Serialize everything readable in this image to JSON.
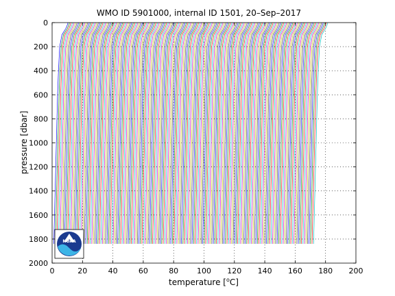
{
  "chart_data": {
    "type": "line",
    "title": "WMO ID 5901000, internal ID 1501, 20–Sep–2017",
    "xlabel_pre": "temperature [",
    "xlabel_sup": "o",
    "xlabel_post": "C]",
    "ylabel": "pressure [dbar]",
    "xlim": [
      0,
      200
    ],
    "ylim": [
      0,
      2000
    ],
    "y_reversed": true,
    "grid": "dotted",
    "x_ticks": [
      0,
      20,
      40,
      60,
      80,
      100,
      120,
      140,
      160,
      180,
      200
    ],
    "y_ticks": [
      0,
      200,
      400,
      600,
      800,
      1000,
      1200,
      1400,
      1600,
      1800,
      2000
    ],
    "x_tick_labels": [
      "0",
      "20",
      "40",
      "60",
      "80",
      "100",
      "120",
      "140",
      "160",
      "180",
      "200"
    ],
    "y_tick_labels": [
      "0",
      "200",
      "400",
      "600",
      "800",
      "1000",
      "1200",
      "1400",
      "1600",
      "1800",
      "2000"
    ],
    "series_colors": [
      "#0000ff",
      "#008000",
      "#ff0000",
      "#00bfbf",
      "#bf00bf",
      "#bfbf00",
      "#404040"
    ],
    "profiles": {
      "count": 172,
      "offset_step": 1.0,
      "profile_shape": {
        "pressure": [
          0,
          20,
          50,
          100,
          200,
          400,
          600,
          800,
          1000,
          1200,
          1400,
          1600,
          1840
        ],
        "temperature": [
          10.5,
          10.0,
          9.0,
          6.5,
          5.0,
          4.2,
          3.6,
          3.2,
          2.8,
          2.4,
          2.0,
          1.6,
          1.1
        ]
      }
    }
  },
  "logo": {
    "name": "NOAA",
    "text": "NOAA",
    "colors": {
      "dark": "#1a3a8f",
      "light": "#3cb4e6",
      "white": "#ffffff"
    }
  }
}
